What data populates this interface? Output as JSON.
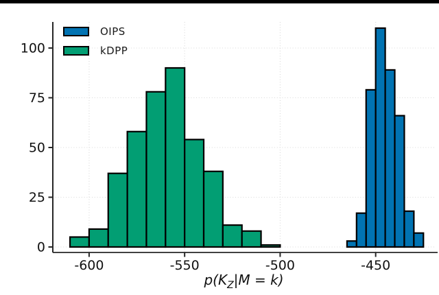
{
  "figure": {
    "background": "#ffffff",
    "top_rule_color": "#000000"
  },
  "legend": {
    "position": "top-left",
    "items": [
      {
        "label": "OIPS",
        "color": "#0173b2"
      },
      {
        "label": "kDPP",
        "color": "#029e73"
      }
    ]
  },
  "xlabel": {
    "pre": "p(K",
    "sub": "Z",
    "post": "|M = k)"
  },
  "axis": {
    "spine_color": "#262626",
    "tick_color": "#262626",
    "grid_color": "#d8d8d8",
    "text_color": "#111111"
  },
  "chart_data": {
    "type": "bar",
    "subtype": "histogram",
    "title": "",
    "xlabel": "p(K_Z|M = k)",
    "ylabel": "",
    "xlim": [
      -619,
      -419
    ],
    "ylim": [
      0,
      113
    ],
    "grid": true,
    "grid_style": "dotted",
    "legend_position": "top-left",
    "bar_stroke_color": "#000000",
    "bar_stroke_width": 2.2,
    "xticks": [
      {
        "value": -600,
        "label": "-600"
      },
      {
        "value": -550,
        "label": "-550"
      },
      {
        "value": -500,
        "label": "-500"
      },
      {
        "value": -450,
        "label": "-450"
      }
    ],
    "yticks": [
      {
        "value": 0,
        "label": "0"
      },
      {
        "value": 25,
        "label": "25"
      },
      {
        "value": 50,
        "label": "50"
      },
      {
        "value": 75,
        "label": "75"
      },
      {
        "value": 100,
        "label": "100"
      }
    ],
    "series": [
      {
        "name": "kDPP",
        "color": "#029e73",
        "bin_start": -610,
        "bin_width": 10,
        "bin_edges": [
          -610,
          -600,
          -590,
          -580,
          -570,
          -560,
          -550,
          -540,
          -530,
          -520,
          -510,
          -500
        ],
        "counts": [
          5,
          9,
          37,
          58,
          78,
          90,
          54,
          38,
          11,
          8,
          1
        ]
      },
      {
        "name": "OIPS",
        "color": "#0173b2",
        "bin_start": -465,
        "bin_width": 5,
        "bin_edges": [
          -465,
          -460,
          -455,
          -450,
          -445,
          -440,
          -435,
          -430,
          -425
        ],
        "counts": [
          3,
          17,
          79,
          110,
          89,
          66,
          18,
          7
        ]
      }
    ]
  }
}
